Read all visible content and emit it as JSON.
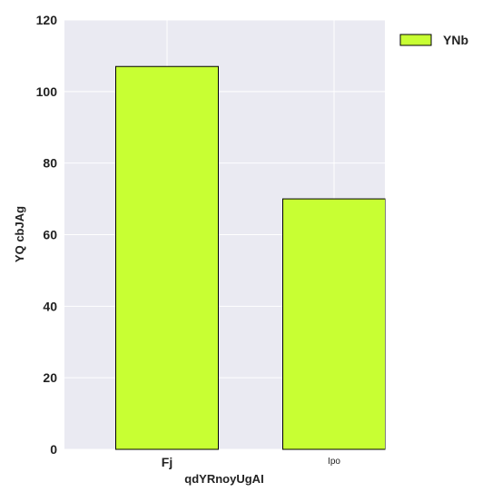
{
  "chart_data": {
    "type": "bar",
    "categories": [
      "Fj",
      "Ipo"
    ],
    "series": [
      {
        "name": "YNb",
        "values": [
          107,
          70
        ]
      }
    ],
    "xlabel": "qdYRnoyUgAI",
    "ylabel": "YQ cbJAg",
    "ylim": [
      0,
      120
    ],
    "yticks": [
      0,
      20,
      40,
      60,
      80,
      100,
      120
    ],
    "grid": true,
    "legend_position": "top-right",
    "colors": {
      "plot_background": "#eaeaf2",
      "grid": "#ffffff",
      "bar_fill": "#c8ff33",
      "bar_edge": "#000000"
    }
  }
}
